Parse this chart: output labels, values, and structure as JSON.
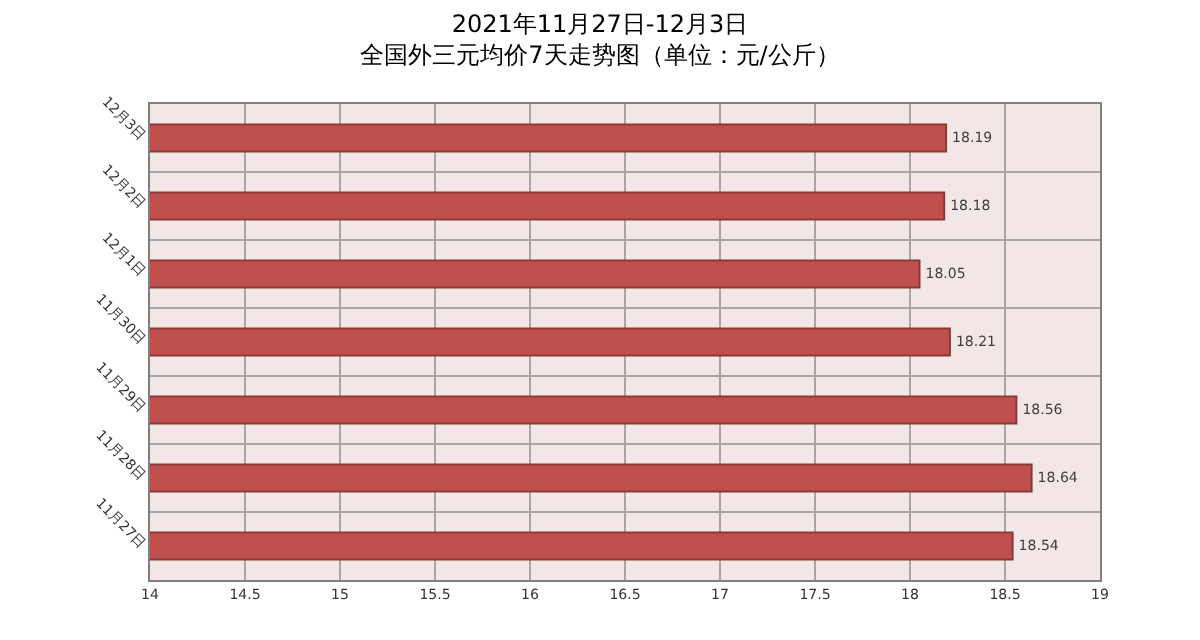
{
  "chart_data": {
    "type": "bar",
    "orientation": "horizontal",
    "title": "2021年11月27日-12月3日",
    "subtitle": "全国外三元均价7天走势图（单位：元/公斤）",
    "categories": [
      "12月3日",
      "12月2日",
      "12月1日",
      "11月30日",
      "11月29日",
      "11月28日",
      "11月27日"
    ],
    "values": [
      18.19,
      18.18,
      18.05,
      18.21,
      18.56,
      18.64,
      18.54
    ],
    "color": "#c0504d",
    "xlim": [
      14,
      19
    ],
    "xticks": [
      14,
      14.5,
      15,
      15.5,
      16,
      16.5,
      17,
      17.5,
      18,
      18.5,
      19
    ],
    "grid": true,
    "data_labels": true,
    "legend": false
  }
}
